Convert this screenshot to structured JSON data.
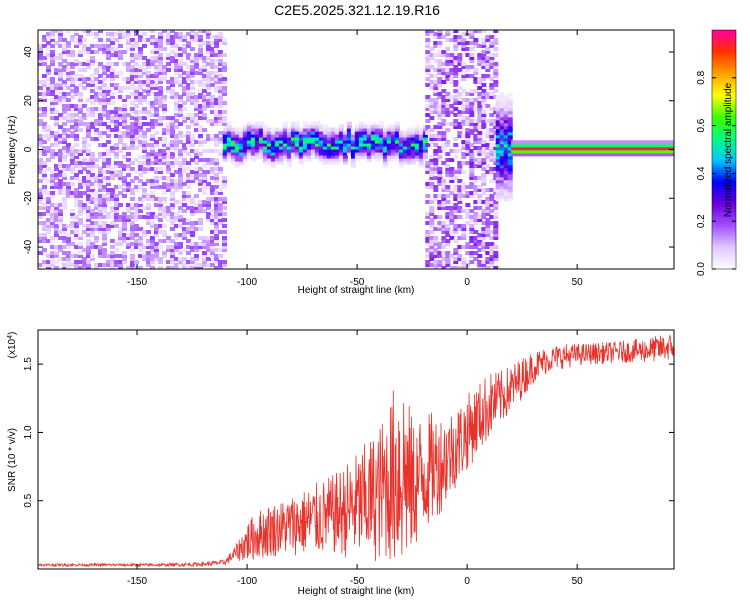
{
  "title": "C2E5.2025.321.12.19.R16",
  "chart_data": [
    {
      "type": "heatmap",
      "xlabel": "Height of straight line (km)",
      "ylabel": "Frequency (Hz)",
      "xlim": [
        -195,
        94
      ],
      "ylim": [
        -49,
        49
      ],
      "x_ticks": [
        -150,
        -100,
        -50,
        0,
        50
      ],
      "y_ticks": [
        -40,
        -20,
        0,
        20,
        40
      ],
      "colorbar": {
        "label": "Normalized spectral amplitude",
        "range": [
          0.0,
          1.0
        ],
        "ticks": [
          0.0,
          0.2,
          0.4,
          0.6,
          0.8
        ],
        "tick_labels": [
          "0.0",
          "0.2",
          "0.4",
          "0.6",
          "0.8"
        ],
        "colormap": [
          "#ffffff",
          "#e0c8ff",
          "#a050ff",
          "#6a00d8",
          "#0000ff",
          "#00c8ff",
          "#00ff80",
          "#40ff00",
          "#ffff00",
          "#ffa000",
          "#ff3000",
          "#ff00a0"
        ]
      },
      "regions": [
        {
          "x_range": [
            -195,
            -111
          ],
          "freq_range": [
            -49,
            49
          ],
          "amplitude": 0.1,
          "kind": "noise"
        },
        {
          "x_range": [
            -111,
            -19
          ],
          "freq_center": 2,
          "freq_halfwidth": 5,
          "amplitude": 0.45,
          "kind": "band"
        },
        {
          "x_range": [
            -19,
            13
          ],
          "freq_range": [
            -49,
            49
          ],
          "amplitude": 0.12,
          "kind": "noise"
        },
        {
          "x_range": [
            13,
            20
          ],
          "freq_center": 0,
          "freq_halfwidth": 15,
          "amplitude": 0.4,
          "kind": "transition"
        },
        {
          "x_range": [
            20,
            94
          ],
          "freq_center": 0,
          "freq_halfwidth": 2,
          "amplitude": 0.95,
          "kind": "line"
        }
      ]
    },
    {
      "type": "line",
      "xlabel": "Height of straight line (km)",
      "ylabel": "SNR (10 * v/v)",
      "y_multiplier_label": "(x10",
      "y_multiplier_exp": "4",
      "y_multiplier_close": ")",
      "xlim": [
        -195,
        94
      ],
      "ylim": [
        0,
        17500
      ],
      "x_ticks": [
        -150,
        -100,
        -50,
        0,
        50
      ],
      "y_ticks": [
        5000,
        10000,
        15000
      ],
      "y_tick_labels": [
        "0.5",
        "1.0",
        "1.5"
      ],
      "color": "#e8322c",
      "series": [
        {
          "x": [
            -195,
            -180,
            -160,
            -140,
            -120,
            -110,
            -105,
            -100,
            -95,
            -90,
            -85,
            -80,
            -75,
            -70,
            -65,
            -60,
            -55,
            -50,
            -45,
            -40,
            -35,
            -30,
            -25,
            -20,
            -15,
            -10,
            -5,
            0,
            5,
            10,
            15,
            20,
            25,
            30,
            35,
            40,
            45,
            50,
            60,
            70,
            80,
            90,
            94
          ],
          "y": [
            300,
            300,
            300,
            300,
            350,
            500,
            1200,
            2000,
            2500,
            2800,
            3000,
            3200,
            3400,
            3600,
            3800,
            4000,
            4300,
            4600,
            5000,
            5500,
            6500,
            7500,
            6000,
            7000,
            7500,
            8000,
            9000,
            10000,
            11000,
            12000,
            12500,
            13200,
            14000,
            14800,
            15200,
            15500,
            15600,
            15700,
            15800,
            15900,
            16000,
            16200,
            16300
          ],
          "noise_amplitude": [
            100,
            100,
            100,
            100,
            150,
            200,
            600,
            1500,
            1800,
            2000,
            2000,
            2200,
            2400,
            2600,
            2800,
            3000,
            3500,
            4000,
            4500,
            5000,
            6000,
            8000,
            5000,
            4500,
            4000,
            3500,
            3000,
            2800,
            2600,
            2500,
            2000,
            1800,
            1500,
            1200,
            1000,
            900,
            900,
            800,
            800,
            800,
            900,
            1000,
            1000
          ]
        }
      ]
    }
  ]
}
